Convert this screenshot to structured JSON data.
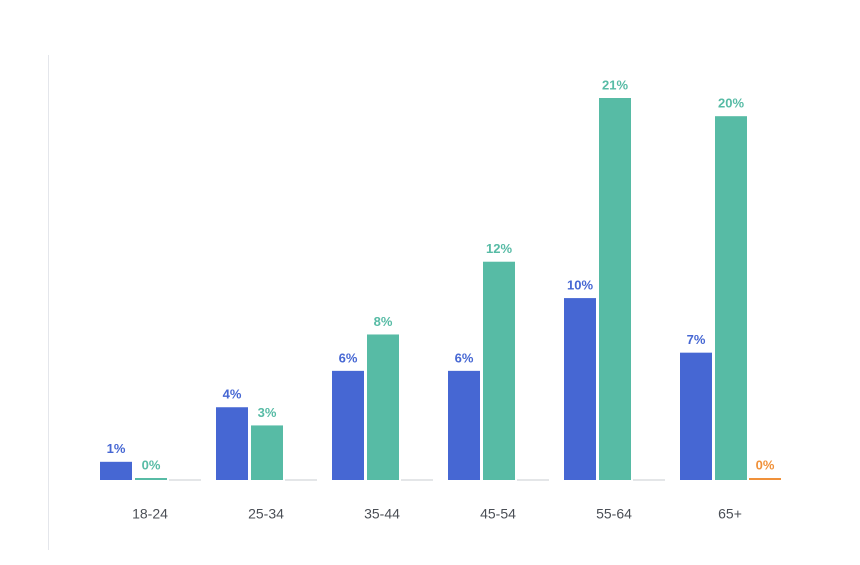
{
  "chart_data": {
    "type": "bar",
    "categories": [
      "18-24",
      "25-34",
      "35-44",
      "45-54",
      "55-64",
      "65+"
    ],
    "series": [
      {
        "color": "#4667d3",
        "values": [
          1,
          4,
          6,
          6,
          10,
          7
        ],
        "value_labels": [
          "1%",
          "4%",
          "6%",
          "6%",
          "10%",
          "7%"
        ]
      },
      {
        "color": "#57bba5",
        "values": [
          0,
          3,
          8,
          12,
          21,
          20
        ],
        "value_labels": [
          "0%",
          "3%",
          "8%",
          "12%",
          "21%",
          "20%"
        ]
      },
      {
        "color": "#f0913a",
        "values": [
          null,
          null,
          null,
          null,
          null,
          0
        ],
        "value_labels": [
          null,
          null,
          null,
          null,
          null,
          "0%"
        ]
      }
    ]
  }
}
